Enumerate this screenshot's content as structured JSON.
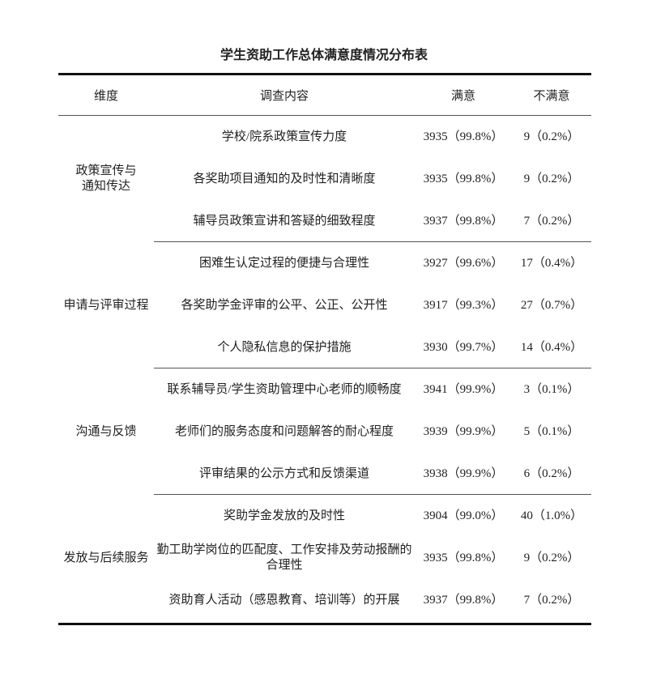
{
  "title": "学生资助工作总体满意度情况分布表",
  "headers": {
    "dimension": "维度",
    "content": "调查内容",
    "satisfied": "满意",
    "unsatisfied": "不满意"
  },
  "groups": [
    {
      "dimension": "政策宣传与\n通知传达",
      "rows": [
        {
          "content": "学校/院系政策宣传力度",
          "satisfied": "3935（99.8%）",
          "unsatisfied": "9（0.2%）"
        },
        {
          "content": "各奖助项目通知的及时性和清晰度",
          "satisfied": "3935（99.8%）",
          "unsatisfied": "9（0.2%）"
        },
        {
          "content": "辅导员政策宣讲和答疑的细致程度",
          "satisfied": "3937（99.8%）",
          "unsatisfied": "7（0.2%）"
        }
      ]
    },
    {
      "dimension": "申请与评审过程",
      "rows": [
        {
          "content": "困难生认定过程的便捷与合理性",
          "satisfied": "3927（99.6%）",
          "unsatisfied": "17（0.4%）"
        },
        {
          "content": "各奖助学金评审的公平、公正、公开性",
          "satisfied": "3917（99.3%）",
          "unsatisfied": "27（0.7%）"
        },
        {
          "content": "个人隐私信息的保护措施",
          "satisfied": "3930（99.7%）",
          "unsatisfied": "14（0.4%）"
        }
      ]
    },
    {
      "dimension": "沟通与反馈",
      "rows": [
        {
          "content": "联系辅导员/学生资助管理中心老师的顺畅度",
          "satisfied": "3941（99.9%）",
          "unsatisfied": "3（0.1%）"
        },
        {
          "content": "老师们的服务态度和问题解答的耐心程度",
          "satisfied": "3939（99.9%）",
          "unsatisfied": "5（0.1%）"
        },
        {
          "content": "评审结果的公示方式和反馈渠道",
          "satisfied": "3938（99.9%）",
          "unsatisfied": "6（0.2%）"
        }
      ]
    },
    {
      "dimension": "发放与后续服务",
      "rows": [
        {
          "content": "奖助学金发放的及时性",
          "satisfied": "3904（99.0%）",
          "unsatisfied": "40（1.0%）"
        },
        {
          "content": "勤工助学岗位的匹配度、工作安排及劳动报酬的合理性",
          "satisfied": "3935（99.8%）",
          "unsatisfied": "9（0.2%）"
        },
        {
          "content": "资助育人活动（感恩教育、培训等）的开展",
          "satisfied": "3937（99.8%）",
          "unsatisfied": "7（0.2%）"
        }
      ]
    }
  ]
}
